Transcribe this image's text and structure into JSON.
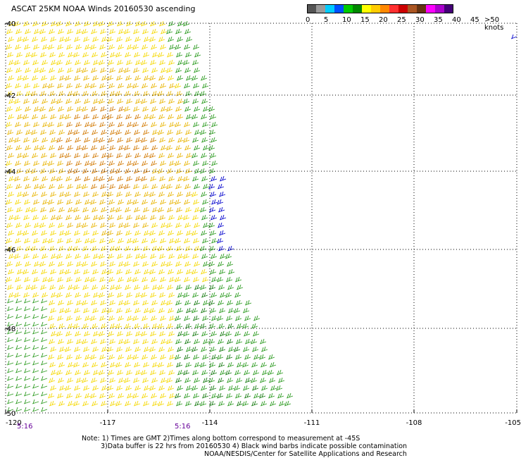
{
  "title": "ASCAT 25KM NOAA Winds 20160530 ascending",
  "legend": {
    "units": ">50 knots",
    "ticks": [
      "0",
      "5",
      "10",
      "15",
      "20",
      "25",
      "30",
      "35",
      "40",
      "45"
    ],
    "colors": [
      "#555555",
      "#9a9a9a",
      "#00ccff",
      "#0050ff",
      "#00cc00",
      "#008800",
      "#ffff00",
      "#ffcc00",
      "#ff8800",
      "#ff3030",
      "#cc0000",
      "#aa5522",
      "#663311",
      "#ff00ff",
      "#aa00cc",
      "#440077"
    ]
  },
  "axes": {
    "lon_labels": [
      "-120",
      "-117",
      "-114",
      "-111",
      "-108",
      "-105"
    ],
    "lat_labels": [
      "-40",
      "-42",
      "-44",
      "-46",
      "-48",
      "-50"
    ]
  },
  "time_labels": [
    "5:16",
    "5:16"
  ],
  "notes": [
    "Note: 1) Times are GMT 2)Times along bottom correspond to measurement at -45S",
    "3)Data buffer is 22 hrs from 20160530 4) Black wind barbs indicate possible contamination",
    "NOAA/NESDIS/Center for Satellite Applications and Research"
  ],
  "colors": {
    "yellow": "#f5d800",
    "gold": "#e8b400",
    "orange": "#d27800",
    "green": "#2a9a1e",
    "dark_green": "#157a10",
    "blue": "#0000cc",
    "black": "#000000"
  }
}
